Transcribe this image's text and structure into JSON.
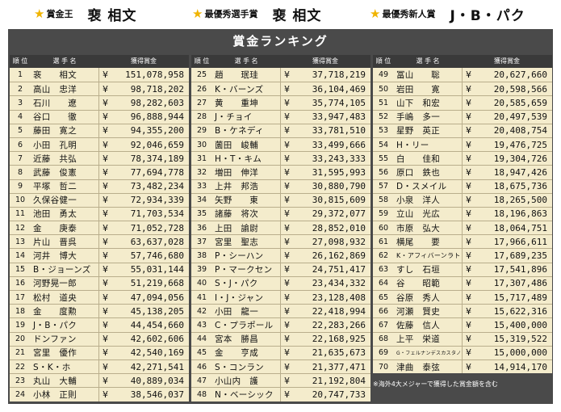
{
  "awards": [
    {
      "label": "賞金王",
      "name": "裵 相文"
    },
    {
      "label": "最優秀選手賞",
      "name": "裵 相文"
    },
    {
      "label": "最優秀新人賞",
      "name": "J・B・パク"
    }
  ],
  "board": {
    "title": "賞金ランキング",
    "headers": {
      "rank": "順 位",
      "name": "選 手 名",
      "prize": "獲得賞金"
    },
    "currency": "¥",
    "note": "※海外4大メジャーで獲得した賞金額を含む"
  },
  "rankings": [
    {
      "rank": "1",
      "name": "裵　　相文",
      "prize": "151,078,958"
    },
    {
      "rank": "2",
      "name": "高山　忠洋",
      "prize": "98,718,202"
    },
    {
      "rank": "3",
      "name": "石川　　遼",
      "prize": "98,282,603"
    },
    {
      "rank": "4",
      "name": "谷口　　徹",
      "prize": "96,888,944"
    },
    {
      "rank": "5",
      "name": "藤田　寛之",
      "prize": "94,355,200"
    },
    {
      "rank": "6",
      "name": "小田　孔明",
      "prize": "92,046,659"
    },
    {
      "rank": "7",
      "name": "近藤　共弘",
      "prize": "78,374,189"
    },
    {
      "rank": "8",
      "name": "武藤　俊憲",
      "prize": "77,694,778"
    },
    {
      "rank": "9",
      "name": "平塚　哲二",
      "prize": "73,482,234"
    },
    {
      "rank": "10",
      "name": "久保谷健一",
      "prize": "72,934,339"
    },
    {
      "rank": "11",
      "name": "池田　勇太",
      "prize": "71,703,534"
    },
    {
      "rank": "12",
      "name": "金　　庚泰",
      "prize": "71,052,728"
    },
    {
      "rank": "13",
      "name": "片山　晋呉",
      "prize": "63,637,028"
    },
    {
      "rank": "14",
      "name": "河井　博大",
      "prize": "57,746,680"
    },
    {
      "rank": "15",
      "name": "B・ジョーンズ",
      "prize": "55,031,144"
    },
    {
      "rank": "16",
      "name": "河野晃一郎",
      "prize": "51,219,668"
    },
    {
      "rank": "17",
      "name": "松村　道央",
      "prize": "47,094,056"
    },
    {
      "rank": "18",
      "name": "金　　度勲",
      "prize": "45,138,205"
    },
    {
      "rank": "19",
      "name": "J・B・パク",
      "prize": "44,454,660"
    },
    {
      "rank": "20",
      "name": "ドンファン",
      "prize": "42,602,606"
    },
    {
      "rank": "21",
      "name": "宮里　優作",
      "prize": "42,540,169"
    },
    {
      "rank": "22",
      "name": "S・K・ホ",
      "prize": "42,271,541"
    },
    {
      "rank": "23",
      "name": "丸山　大輔",
      "prize": "40,889,034"
    },
    {
      "rank": "24",
      "name": "小林　正則",
      "prize": "38,546,037"
    },
    {
      "rank": "25",
      "name": "趙　　珉珪",
      "prize": "37,718,219"
    },
    {
      "rank": "26",
      "name": "K・バーンズ",
      "prize": "36,104,469"
    },
    {
      "rank": "27",
      "name": "黄　　重坤",
      "prize": "35,774,105"
    },
    {
      "rank": "28",
      "name": "J・チョイ",
      "prize": "33,947,483"
    },
    {
      "rank": "29",
      "name": "B・ケネディ",
      "prize": "33,781,510"
    },
    {
      "rank": "30",
      "name": "薗田　峻輔",
      "prize": "33,499,666"
    },
    {
      "rank": "31",
      "name": "H・T・キム",
      "prize": "33,243,333"
    },
    {
      "rank": "32",
      "name": "増田　伸洋",
      "prize": "31,595,993"
    },
    {
      "rank": "33",
      "name": "上井　邦浩",
      "prize": "30,880,790"
    },
    {
      "rank": "34",
      "name": "矢野　　東",
      "prize": "30,815,609"
    },
    {
      "rank": "35",
      "name": "諸藤　将次",
      "prize": "29,372,077"
    },
    {
      "rank": "36",
      "name": "上田　諭尉",
      "prize": "28,852,010"
    },
    {
      "rank": "37",
      "name": "宮里　聖志",
      "prize": "27,098,932"
    },
    {
      "rank": "38",
      "name": "P・シーハン",
      "prize": "26,162,869"
    },
    {
      "rank": "39",
      "name": "P・マークセン",
      "prize": "24,751,417"
    },
    {
      "rank": "40",
      "name": "S・J・パク",
      "prize": "23,434,332"
    },
    {
      "rank": "41",
      "name": "I・J・ジャン",
      "prize": "23,128,408"
    },
    {
      "rank": "42",
      "name": "小田　龍一",
      "prize": "22,418,994"
    },
    {
      "rank": "43",
      "name": "C・プラポール",
      "prize": "22,283,266"
    },
    {
      "rank": "44",
      "name": "宮本　勝昌",
      "prize": "22,168,925"
    },
    {
      "rank": "45",
      "name": "金　　亨成",
      "prize": "21,635,673"
    },
    {
      "rank": "46",
      "name": "S・コンラン",
      "prize": "21,377,471"
    },
    {
      "rank": "47",
      "name": "小山内　護",
      "prize": "21,192,804"
    },
    {
      "rank": "48",
      "name": "N・ベーシック",
      "prize": "20,747,733"
    },
    {
      "rank": "49",
      "name": "冨山　　聡",
      "prize": "20,627,660"
    },
    {
      "rank": "50",
      "name": "岩田　　寛",
      "prize": "20,598,566"
    },
    {
      "rank": "51",
      "name": "山下　和宏",
      "prize": "20,585,659"
    },
    {
      "rank": "52",
      "name": "手嶋　多一",
      "prize": "20,497,539"
    },
    {
      "rank": "53",
      "name": "星野　英正",
      "prize": "20,408,754"
    },
    {
      "rank": "54",
      "name": "H・リー",
      "prize": "19,476,725"
    },
    {
      "rank": "55",
      "name": "白　　佳和",
      "prize": "19,304,726"
    },
    {
      "rank": "56",
      "name": "原口　鉄也",
      "prize": "18,947,426"
    },
    {
      "rank": "57",
      "name": "D・スメイル",
      "prize": "18,675,736"
    },
    {
      "rank": "58",
      "name": "小泉　洋人",
      "prize": "18,265,500"
    },
    {
      "rank": "59",
      "name": "立山　光広",
      "prize": "18,196,863"
    },
    {
      "rank": "60",
      "name": "市原　弘大",
      "prize": "18,064,751"
    },
    {
      "rank": "61",
      "name": "横尾　　要",
      "prize": "17,966,611"
    },
    {
      "rank": "62",
      "name": "K・アフィバーンラト",
      "prize": "17,689,235"
    },
    {
      "rank": "63",
      "name": "すし　石垣",
      "prize": "17,541,896"
    },
    {
      "rank": "64",
      "name": "谷　　昭範",
      "prize": "17,307,486"
    },
    {
      "rank": "65",
      "name": "谷原　秀人",
      "prize": "15,717,489"
    },
    {
      "rank": "66",
      "name": "河瀬　賢史",
      "prize": "15,622,316"
    },
    {
      "rank": "67",
      "name": "佐藤　信人",
      "prize": "15,400,000"
    },
    {
      "rank": "68",
      "name": "上平　栄道",
      "prize": "15,319,522"
    },
    {
      "rank": "69",
      "name": "G・フェルナンデスカスタノ",
      "prize": "15,000,000"
    },
    {
      "rank": "70",
      "name": "津曲　泰弦",
      "prize": "14,914,170"
    }
  ]
}
